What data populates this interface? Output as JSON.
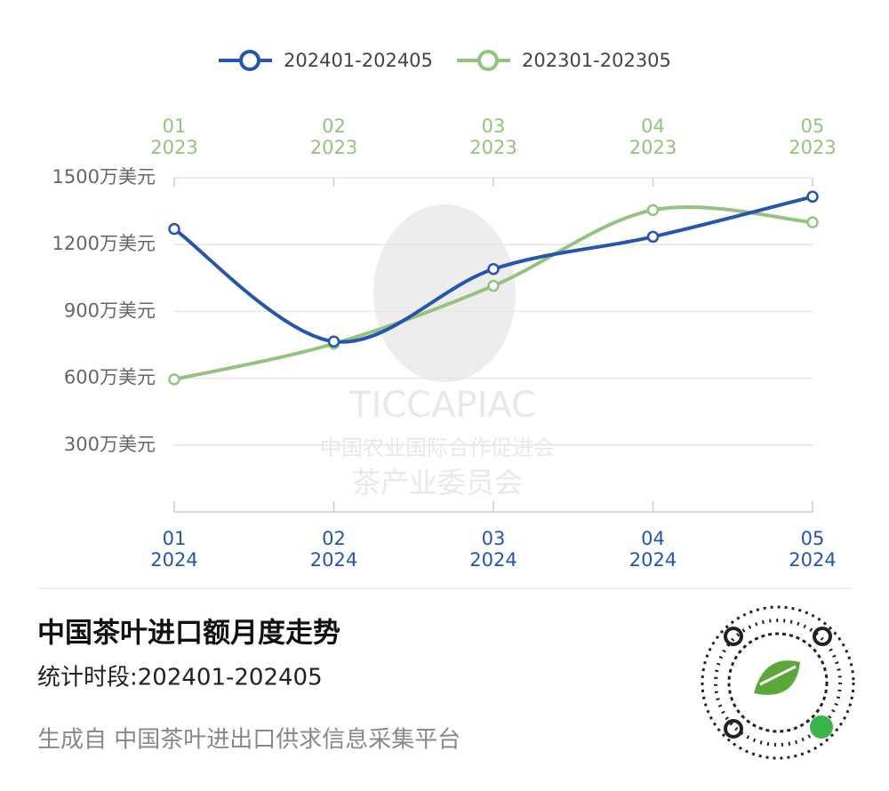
{
  "chart_data": {
    "type": "line",
    "title": "中国茶叶进口额月度走势",
    "subtitle": "统计时段:202401-202405",
    "source": "生成自 中国茶叶进出口供求信息采集平台",
    "watermark": {
      "name": "TICCAPIAC",
      "line1": "中国农业国际合作促进会",
      "line2": "茶产业委员会"
    },
    "x_bottom": [
      {
        "month": "01",
        "year": "2024"
      },
      {
        "month": "02",
        "year": "2024"
      },
      {
        "month": "03",
        "year": "2024"
      },
      {
        "month": "04",
        "year": "2024"
      },
      {
        "month": "05",
        "year": "2024"
      }
    ],
    "x_top": [
      {
        "month": "01",
        "year": "2023"
      },
      {
        "month": "02",
        "year": "2023"
      },
      {
        "month": "03",
        "year": "2023"
      },
      {
        "month": "04",
        "year": "2023"
      },
      {
        "month": "05",
        "year": "2023"
      }
    ],
    "series": [
      {
        "name": "202401-202405",
        "color": "#2456b0",
        "values": [
          1270,
          765,
          1090,
          1235,
          1415
        ]
      },
      {
        "name": "202301-202305",
        "color": "#93c47d",
        "values": [
          595,
          755,
          1015,
          1355,
          1300
        ]
      }
    ],
    "ylim": [
      0,
      1500
    ],
    "yticks": [
      {
        "value": 300,
        "label": "300万美元"
      },
      {
        "value": 600,
        "label": "600万美元"
      },
      {
        "value": 900,
        "label": "900万美元"
      },
      {
        "value": 1200,
        "label": "1200万美元"
      },
      {
        "value": 1500,
        "label": "1500万美元"
      }
    ],
    "grid": true,
    "smooth": true
  }
}
